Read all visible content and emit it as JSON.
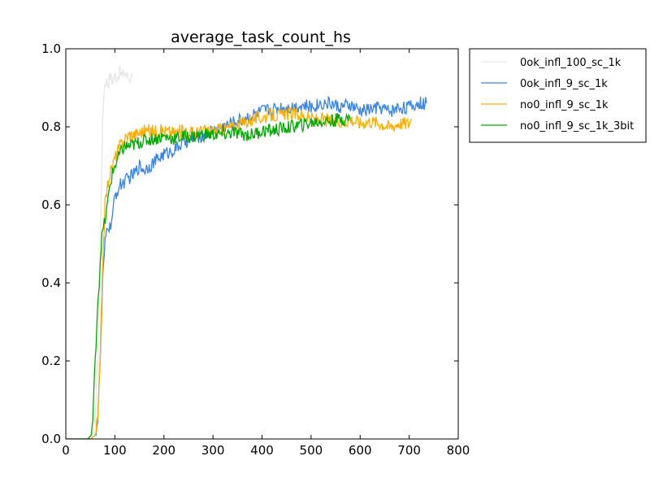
{
  "chart_data": {
    "type": "line",
    "title": "average_task_count_hs",
    "xlabel": "",
    "ylabel": "",
    "xlim": [
      0,
      800
    ],
    "ylim": [
      0,
      1.0
    ],
    "xticks": [
      0,
      100,
      200,
      300,
      400,
      500,
      600,
      700,
      800
    ],
    "yticks": [
      0.0,
      0.2,
      0.4,
      0.6,
      0.8,
      1.0
    ],
    "xtick_labels": [
      "0",
      "100",
      "200",
      "300",
      "400",
      "500",
      "600",
      "700",
      "800"
    ],
    "ytick_labels": [
      "0.0",
      "0.2",
      "0.4",
      "0.6",
      "0.8",
      "1.0"
    ],
    "grid": false,
    "legend_position": "outside-top-right",
    "series": [
      {
        "name": "0ok_infl_100_sc_1k",
        "color": "#e6e6e6",
        "x": [
          0,
          40,
          55,
          60,
          65,
          70,
          75,
          78,
          82,
          86,
          90,
          95,
          100,
          105,
          110,
          115,
          120,
          125,
          130,
          135
        ],
        "y": [
          0,
          0,
          0.01,
          0.05,
          0.2,
          0.5,
          0.8,
          0.9,
          0.92,
          0.91,
          0.93,
          0.92,
          0.93,
          0.93,
          0.94,
          0.93,
          0.94,
          0.93,
          0.925,
          0.93
        ]
      },
      {
        "name": "0ok_infl_9_sc_1k",
        "color": "#3a85e6",
        "x": [
          0,
          50,
          60,
          65,
          70,
          75,
          80,
          85,
          90,
          95,
          100,
          110,
          120,
          130,
          140,
          150,
          160,
          170,
          180,
          190,
          200,
          220,
          240,
          260,
          280,
          300,
          320,
          340,
          360,
          380,
          400,
          420,
          440,
          460,
          480,
          500,
          520,
          540,
          560,
          580,
          600,
          620,
          640,
          660,
          680,
          700,
          720,
          735
        ],
        "y": [
          0,
          0,
          0.01,
          0.05,
          0.2,
          0.4,
          0.5,
          0.55,
          0.54,
          0.57,
          0.62,
          0.65,
          0.66,
          0.67,
          0.68,
          0.7,
          0.69,
          0.7,
          0.71,
          0.72,
          0.73,
          0.74,
          0.76,
          0.77,
          0.78,
          0.79,
          0.8,
          0.81,
          0.82,
          0.83,
          0.84,
          0.845,
          0.85,
          0.85,
          0.855,
          0.85,
          0.86,
          0.86,
          0.85,
          0.855,
          0.84,
          0.845,
          0.85,
          0.84,
          0.85,
          0.85,
          0.86,
          0.86
        ]
      },
      {
        "name": "no0_infl_9_sc_1k",
        "color": "#ffae00",
        "x": [
          0,
          50,
          60,
          65,
          70,
          75,
          80,
          85,
          90,
          95,
          100,
          110,
          120,
          130,
          140,
          150,
          160,
          180,
          200,
          220,
          240,
          260,
          280,
          300,
          320,
          340,
          360,
          380,
          400,
          420,
          440,
          460,
          480,
          500,
          520,
          540,
          560,
          580,
          600,
          620,
          640,
          660,
          680,
          700,
          705
        ],
        "y": [
          0,
          0,
          0.01,
          0.05,
          0.2,
          0.45,
          0.6,
          0.65,
          0.68,
          0.7,
          0.72,
          0.75,
          0.77,
          0.78,
          0.78,
          0.785,
          0.79,
          0.79,
          0.79,
          0.785,
          0.79,
          0.785,
          0.79,
          0.79,
          0.795,
          0.8,
          0.81,
          0.82,
          0.825,
          0.83,
          0.83,
          0.835,
          0.83,
          0.82,
          0.82,
          0.815,
          0.81,
          0.82,
          0.81,
          0.815,
          0.81,
          0.8,
          0.81,
          0.81,
          0.82
        ]
      },
      {
        "name": "no0_infl_9_sc_1k_3bit",
        "color": "#00aa00",
        "x": [
          0,
          45,
          52,
          55,
          60,
          65,
          68,
          70,
          72,
          75,
          80,
          85,
          90,
          95,
          100,
          110,
          120,
          130,
          140,
          150,
          160,
          180,
          200,
          220,
          240,
          260,
          280,
          300,
          320,
          340,
          360,
          380,
          400,
          420,
          440,
          460,
          480,
          500,
          520,
          540,
          560,
          580
        ],
        "y": [
          0,
          0,
          0.01,
          0.05,
          0.2,
          0.35,
          0.4,
          0.45,
          0.5,
          0.53,
          0.56,
          0.6,
          0.65,
          0.68,
          0.7,
          0.73,
          0.75,
          0.75,
          0.755,
          0.76,
          0.765,
          0.77,
          0.775,
          0.77,
          0.775,
          0.775,
          0.78,
          0.78,
          0.78,
          0.785,
          0.78,
          0.78,
          0.79,
          0.79,
          0.795,
          0.8,
          0.805,
          0.81,
          0.815,
          0.815,
          0.82,
          0.82
        ]
      }
    ]
  }
}
